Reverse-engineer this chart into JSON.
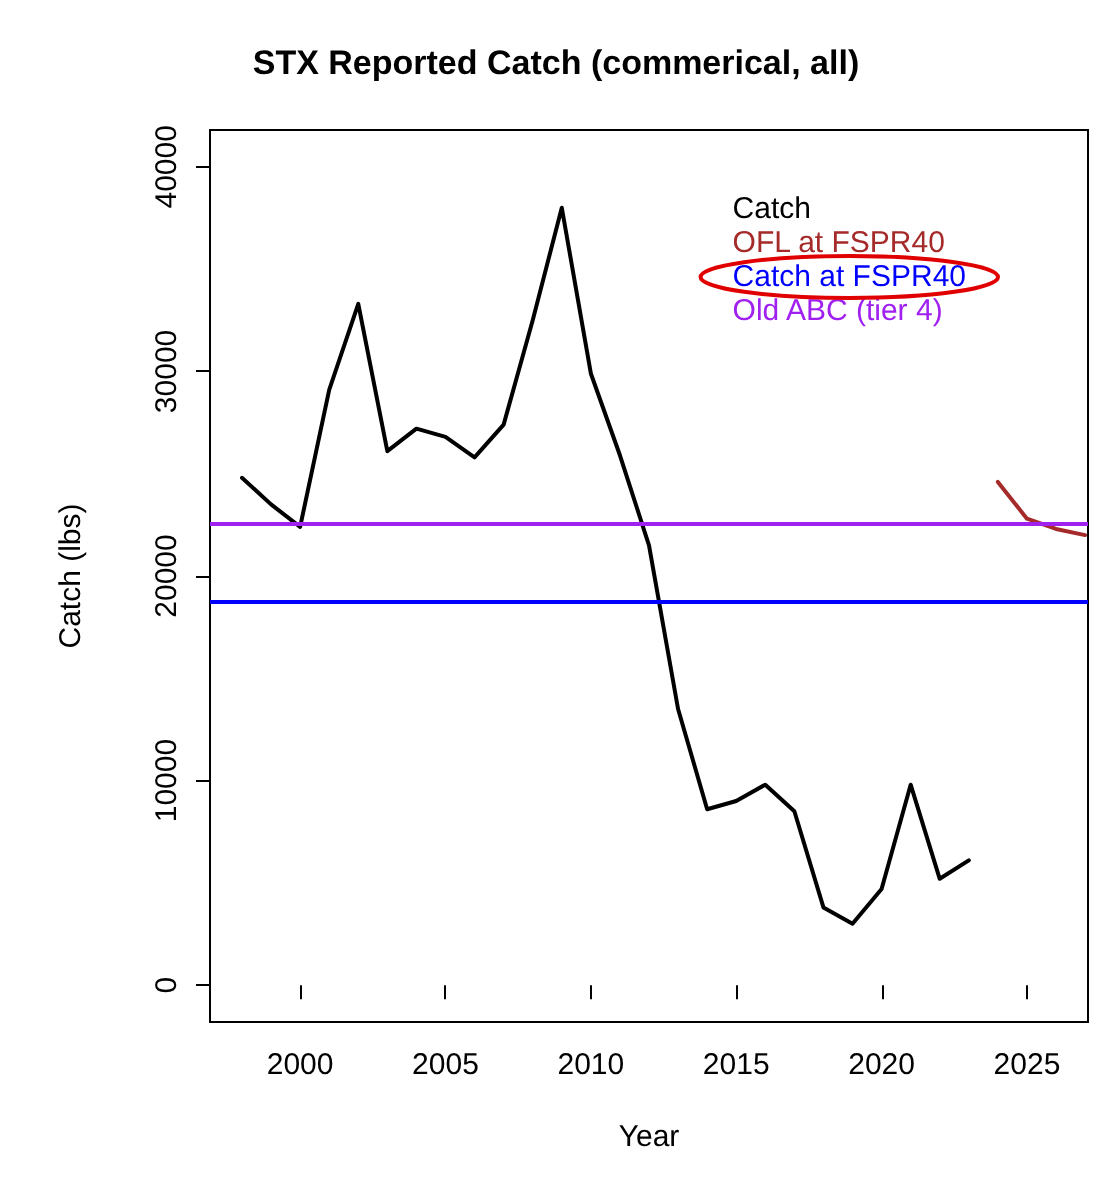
{
  "chart_data": {
    "type": "line",
    "title": "STX Reported Catch (commerical, all)",
    "xlabel": "Year",
    "ylabel": "Catch (lbs)",
    "xlim": [
      1996.9,
      2027.1
    ],
    "xticks": [
      2000,
      2005,
      2010,
      2015,
      2020,
      2025
    ],
    "ylim": [
      -1800,
      41800
    ],
    "yticks": [
      0,
      10000,
      20000,
      30000,
      40000
    ],
    "grid": false,
    "legend": "top right",
    "line_style": "solid",
    "marker": "none",
    "series": [
      {
        "name": "Catch",
        "color": "#000000",
        "x": [
          1998,
          1999,
          2000,
          2001,
          2002,
          2003,
          2004,
          2005,
          2006,
          2007,
          2008,
          2009,
          2010,
          2011,
          2012,
          2013,
          2014,
          2015,
          2016,
          2017,
          2018,
          2019,
          2020,
          2021,
          2022,
          2023
        ],
        "values": [
          24800,
          23500,
          22400,
          29100,
          33300,
          26100,
          27200,
          26800,
          25800,
          27400,
          32500,
          38000,
          29900,
          25900,
          21500,
          13500,
          8600,
          9000,
          9800,
          8500,
          3800,
          3000,
          4700,
          9800,
          5200,
          6100
        ]
      },
      {
        "name": "OFL at FSPR40",
        "color": "#a52a2a",
        "x": [
          2024,
          2025,
          2026,
          2027
        ],
        "values": [
          24600,
          22800,
          22300,
          22000
        ]
      }
    ],
    "ref_lines": [
      {
        "axis": "y",
        "value": 18800,
        "label": "Catch at FSPR40",
        "color": "#0000ff"
      },
      {
        "axis": "y",
        "value": 22600,
        "label": "Old ABC (tier 4)",
        "color": "#a020f0"
      }
    ]
  }
}
